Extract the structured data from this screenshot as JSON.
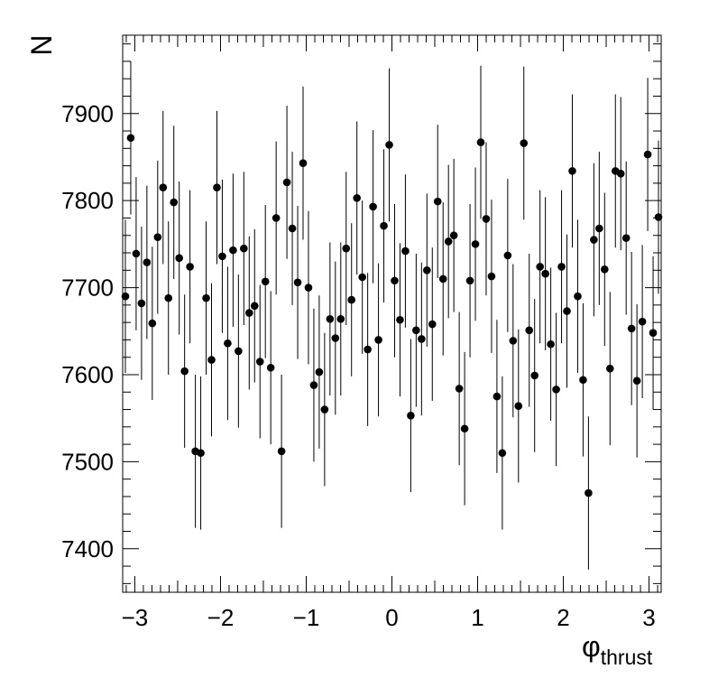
{
  "chart_data": {
    "type": "scatter",
    "style": "points-with-error-bars",
    "title": "",
    "xlabel": "φ",
    "xlabel_subscript": "thrust",
    "ylabel": "N",
    "xlim": [
      -3.14159,
      3.14159
    ],
    "ylim": [
      7350,
      7990
    ],
    "xticks": [
      -3,
      -2,
      -1,
      0,
      1,
      2,
      3
    ],
    "xtick_labels": [
      "−3",
      "−2",
      "−1",
      "0",
      "1",
      "2",
      "3"
    ],
    "yticks": [
      7400,
      7500,
      7600,
      7700,
      7800,
      7900
    ],
    "ytick_labels": [
      "7400",
      "7500",
      "7600",
      "7700",
      "7800",
      "7900"
    ],
    "grid": false,
    "legend": "none",
    "marker_color": "#000000",
    "error": 88,
    "n_bins": 100,
    "y": [
      7690,
      7872,
      7739,
      7682,
      7729,
      7659,
      7758,
      7815,
      7688,
      7798,
      7734,
      7604,
      7724,
      7512,
      7510,
      7688,
      7617,
      7815,
      7736,
      7636,
      7743,
      7627,
      7745,
      7671,
      7679,
      7615,
      7707,
      7608,
      7780,
      7512,
      7821,
      7768,
      7706,
      7843,
      7700,
      7588,
      7603,
      7560,
      7664,
      7642,
      7664,
      7745,
      7686,
      7803,
      7712,
      7629,
      7793,
      7640,
      7771,
      7864,
      7708,
      7663,
      7742,
      7553,
      7651,
      7641,
      7720,
      7658,
      7799,
      7710,
      7753,
      7760,
      7584,
      7538,
      7708,
      7750,
      7867,
      7779,
      7713,
      7575,
      7510,
      7737,
      7639,
      7564,
      7866,
      7651,
      7599,
      7724,
      7716,
      7635,
      7583,
      7724,
      7673,
      7834,
      7690,
      7594,
      7464,
      7755,
      7768,
      7721,
      7607,
      7834,
      7831,
      7757,
      7653,
      7593,
      7661,
      7853,
      7648,
      7781
    ]
  }
}
